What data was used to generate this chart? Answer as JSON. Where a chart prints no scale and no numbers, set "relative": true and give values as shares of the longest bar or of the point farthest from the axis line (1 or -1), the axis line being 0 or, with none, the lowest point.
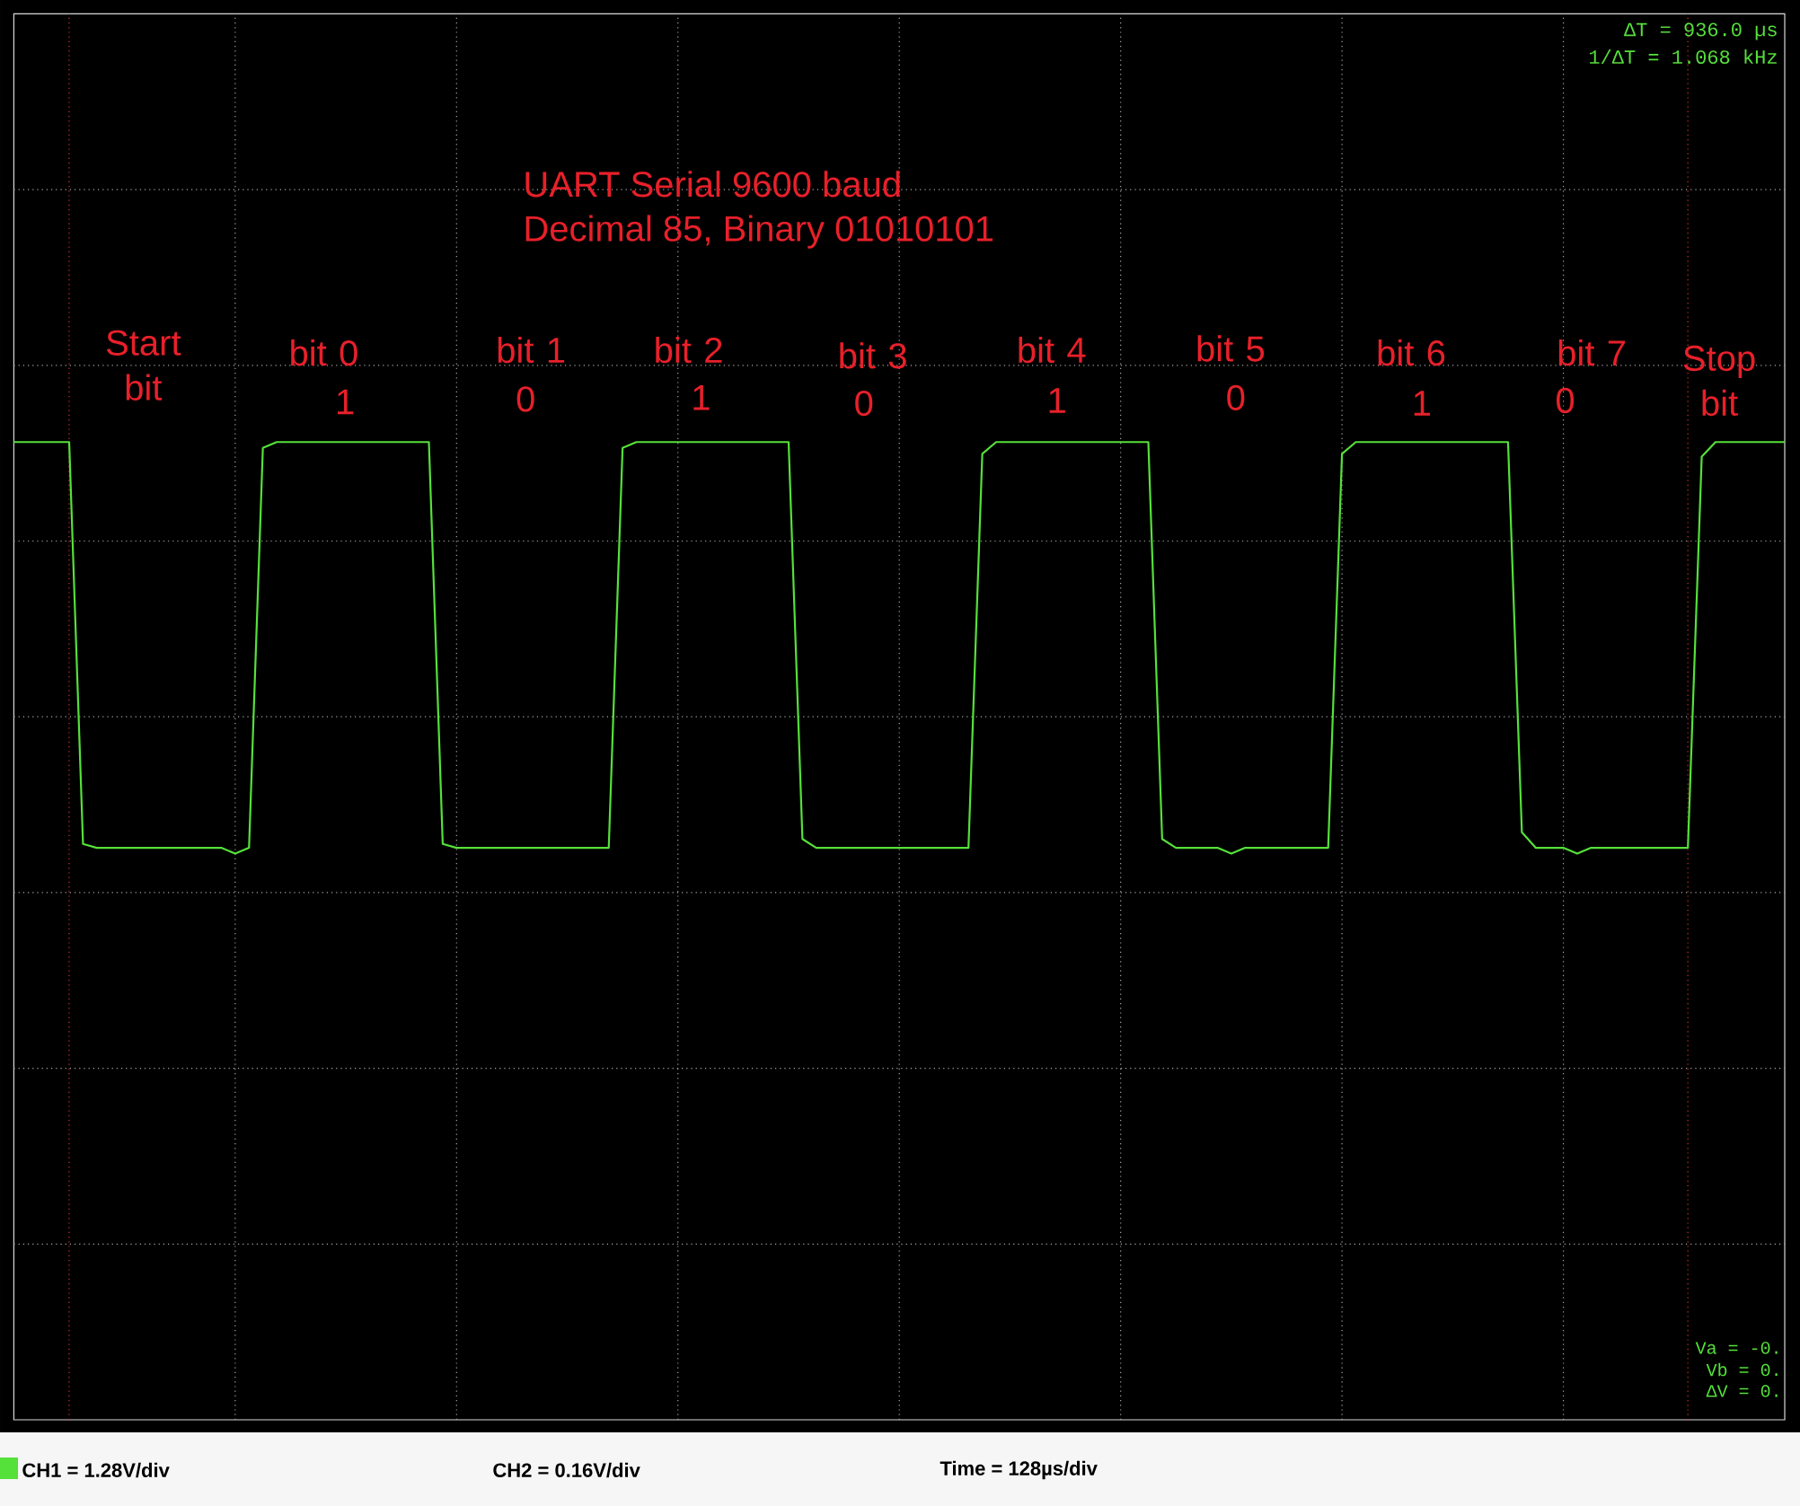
{
  "chart_data": {
    "type": "line",
    "relative": true,
    "title": "UART Serial 9600 baud",
    "subtitle": "Decimal 85, Binary 01010101",
    "grid": true,
    "legend": "bottom",
    "marker": "none",
    "line_style": "solid",
    "categories": [
      null,
      null,
      null,
      null,
      null,
      null,
      null,
      null,
      null,
      null,
      null,
      null,
      null,
      null,
      null,
      null,
      null,
      null,
      null,
      null,
      null,
      null,
      null,
      null,
      null,
      null,
      null,
      null,
      null,
      null,
      null,
      null,
      null,
      null,
      null,
      null,
      null,
      null,
      null,
      null,
      null,
      null,
      null,
      null,
      null,
      null,
      null,
      null,
      null,
      null,
      null,
      null,
      null,
      null,
      null,
      null,
      null,
      null,
      null,
      null,
      null,
      null,
      null,
      null,
      null,
      null,
      null,
      null,
      null,
      null,
      null,
      null,
      null,
      null,
      null,
      null,
      null,
      null,
      null,
      null,
      null,
      null,
      null,
      null,
      null,
      null,
      null,
      null,
      null,
      null,
      null,
      null,
      null,
      null,
      null,
      null,
      null,
      null,
      null,
      null,
      null,
      null,
      null,
      null,
      null,
      null,
      null,
      null,
      null,
      null,
      null,
      null,
      null,
      null,
      null,
      null,
      null,
      null,
      null,
      null,
      null,
      null,
      null,
      null,
      null,
      null,
      null,
      null,
      null
    ],
    "series": [
      {
        "name": "CH1 = 1.28V/div",
        "color": "#55e03a",
        "values": [
          1,
          1,
          1,
          1,
          1,
          0.589,
          0.585,
          0.585,
          0.585,
          0.585,
          0.585,
          0.585,
          0.585,
          0.585,
          0.585,
          0.585,
          0.579,
          0.585,
          0.994,
          1,
          1,
          1,
          1,
          1,
          1,
          1,
          1,
          1,
          1,
          1,
          1,
          0.589,
          0.585,
          0.585,
          0.585,
          0.585,
          0.585,
          0.585,
          0.585,
          0.585,
          0.585,
          0.585,
          0.585,
          0.585,
          0.994,
          1,
          1,
          1,
          1,
          1,
          1,
          1,
          1,
          1,
          1,
          1,
          1,
          0.594,
          0.585,
          0.585,
          0.585,
          0.585,
          0.585,
          0.585,
          0.585,
          0.585,
          0.585,
          0.585,
          0.585,
          0.585,
          0.988,
          1,
          1,
          1,
          1,
          1,
          1,
          1,
          1,
          1,
          1,
          1,
          1,
          0.594,
          0.585,
          0.585,
          0.585,
          0.585,
          0.579,
          0.585,
          0.585,
          0.585,
          0.585,
          0.585,
          0.585,
          0.585,
          0.988,
          1,
          1,
          1,
          1,
          1,
          1,
          1,
          1,
          1,
          1,
          1,
          1,
          0.601,
          0.585,
          0.585,
          0.585,
          0.579,
          0.585,
          0.585,
          0.585,
          0.585,
          0.585,
          0.585,
          0.585,
          0.585,
          0.985,
          1,
          1,
          1,
          1,
          1,
          1
        ]
      }
    ],
    "annotations": [
      "ΔT = 936.0 µs",
      "1/ΔT = 1.068 kHz",
      "Va = -0.",
      "Vb = 0.",
      "ΔV = 0.",
      "CH2 = 0.16V/div",
      "Time = 128µs/div",
      "Start bit",
      "bit 0",
      "1",
      "bit 1",
      "0",
      "bit 2",
      "1",
      "bit 3",
      "0",
      "bit 4",
      "1",
      "bit 5",
      "0",
      "bit 6",
      "1",
      "bit 7",
      "0",
      "Stop bit"
    ]
  }
}
